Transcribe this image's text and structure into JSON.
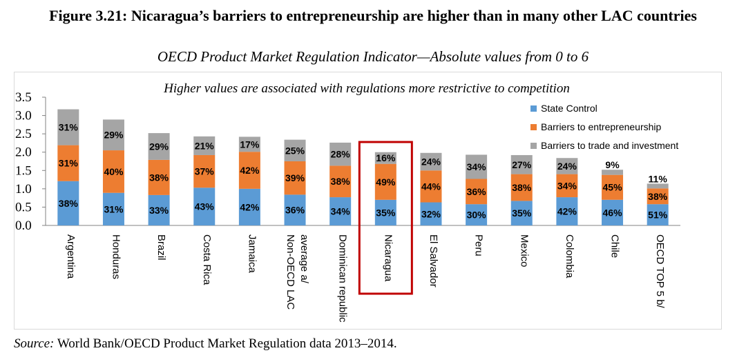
{
  "figure": {
    "title": "Figure 3.21: Nicaragua’s barriers to entrepreneurship are higher than in many other LAC countries",
    "subtitle": "OECD Product Market Regulation Indicator—Absolute values from 0 to 6",
    "source_label": "Source:",
    "source_text": "World Bank/OECD Product Market Regulation data 2013–2014."
  },
  "chart_data": {
    "type": "bar",
    "stacked": true,
    "annotation": "Higher values are associated with regulations more restrictive to competition",
    "ylim": [
      0,
      3.5
    ],
    "yticks": [
      "0.0",
      "0.5",
      "1.0",
      "1.5",
      "2.0",
      "2.5",
      "3.0",
      "3.5"
    ],
    "categories": [
      "Argentina",
      "Honduras",
      "Brazil",
      "Costa Rica",
      "Jamaica",
      "Non-OECD LAC average a/",
      "Dominican republic",
      "Nicaragua",
      "El Salvador",
      "Peru",
      "Mexico",
      "Colombia",
      "Chile",
      "OECD TOP 5 b/"
    ],
    "category_lines": [
      [
        "Argentina"
      ],
      [
        "Honduras"
      ],
      [
        "Brazil"
      ],
      [
        "Costa Rica"
      ],
      [
        "Jamaica"
      ],
      [
        "Non-OECD LAC",
        "average a/"
      ],
      [
        "Dominican republic"
      ],
      [
        "Nicaragua"
      ],
      [
        "El Salvador"
      ],
      [
        "Peru"
      ],
      [
        "Mexico"
      ],
      [
        "Colombia"
      ],
      [
        "Chile"
      ],
      [
        "OECD TOP 5 b/"
      ]
    ],
    "highlight": "Nicaragua",
    "highlight_color": "#c00000",
    "legend_position": "right",
    "grid": false,
    "series": [
      {
        "name": "State Control",
        "color": "#5b9bd5",
        "values": [
          1.21,
          0.89,
          0.83,
          1.03,
          1.0,
          0.84,
          0.77,
          0.7,
          0.63,
          0.58,
          0.67,
          0.77,
          0.7,
          0.58
        ],
        "labels": [
          "38%",
          "31%",
          "33%",
          "43%",
          "42%",
          "36%",
          "34%",
          "35%",
          "32%",
          "30%",
          "35%",
          "42%",
          "46%",
          "51%"
        ]
      },
      {
        "name": "Barriers to entrepreneurship",
        "color": "#ed7d31",
        "values": [
          0.98,
          1.16,
          0.96,
          0.89,
          1.01,
          0.91,
          0.86,
          0.98,
          0.87,
          0.69,
          0.73,
          0.63,
          0.68,
          0.43
        ],
        "labels": [
          "31%",
          "40%",
          "38%",
          "37%",
          "42%",
          "39%",
          "38%",
          "49%",
          "44%",
          "36%",
          "38%",
          "34%",
          "45%",
          "38%"
        ]
      },
      {
        "name": "Barriers to trade and investment",
        "color": "#a5a5a5",
        "values": [
          0.98,
          0.84,
          0.73,
          0.51,
          0.41,
          0.59,
          0.63,
          0.32,
          0.48,
          0.66,
          0.52,
          0.44,
          0.14,
          0.13
        ],
        "labels": [
          "31%",
          "29%",
          "29%",
          "21%",
          "17%",
          "25%",
          "28%",
          "16%",
          "24%",
          "34%",
          "27%",
          "24%",
          "9%",
          "11%"
        ]
      }
    ]
  }
}
